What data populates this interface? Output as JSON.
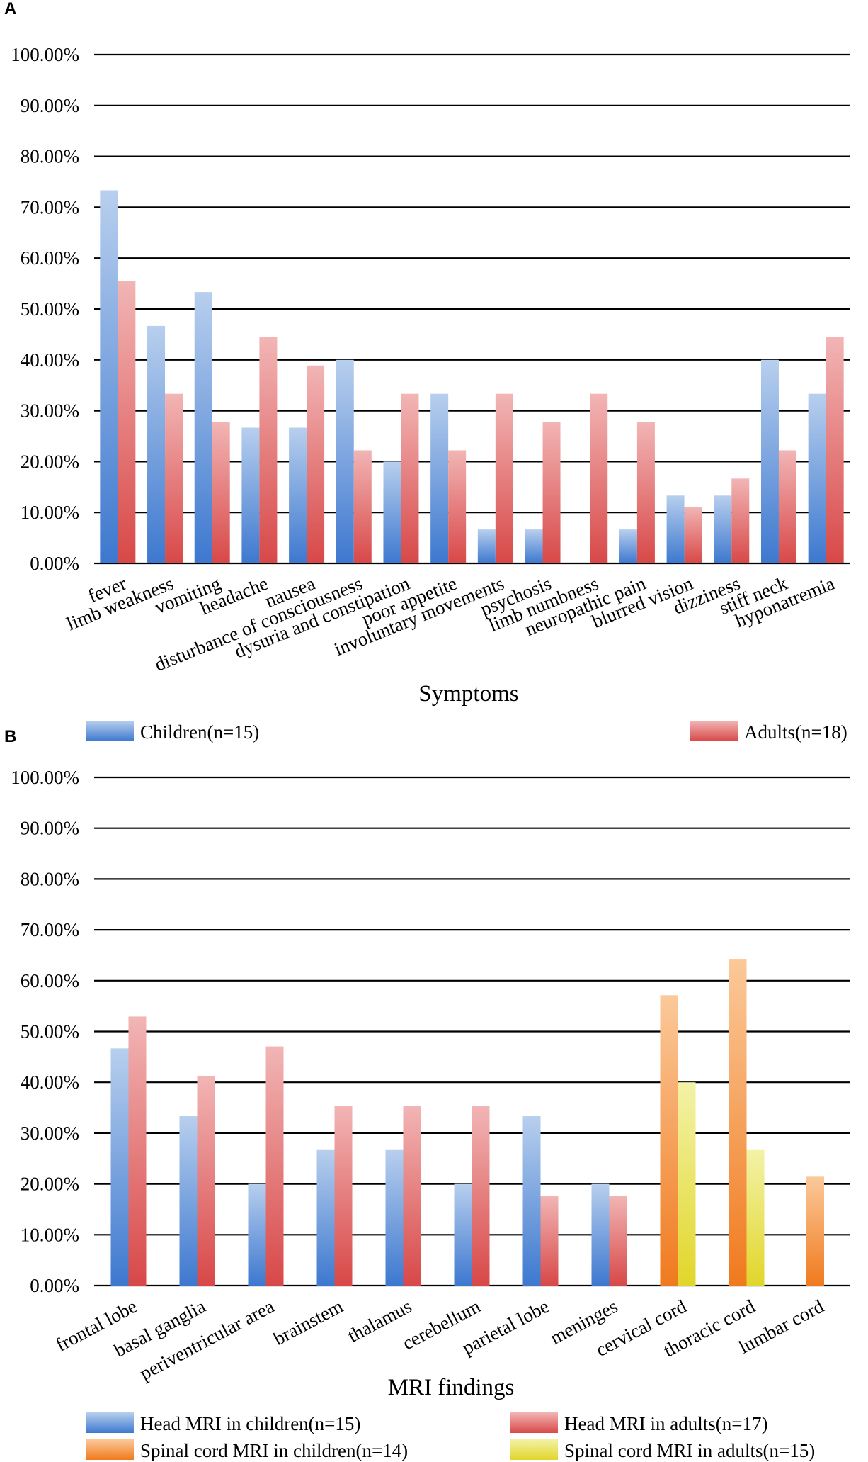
{
  "colors": {
    "blue_top": "#b8cfee",
    "blue_bottom": "#3d78cf",
    "red_top": "#f2b5b5",
    "red_bottom": "#d84848",
    "orange_top": "#fbc99a",
    "orange_bottom": "#f07a1e",
    "yellow_top": "#f3f2a8",
    "yellow_bottom": "#e1d62a"
  },
  "chart_data": [
    {
      "type": "bar",
      "panel": "A",
      "xlabel": "Symptoms",
      "ylabel": "",
      "ylim": [
        0,
        100
      ],
      "yticks": [
        "0.00%",
        "10.00%",
        "20.00%",
        "30.00%",
        "40.00%",
        "50.00%",
        "60.00%",
        "70.00%",
        "80.00%",
        "90.00%",
        "100.00%"
      ],
      "categories": [
        "fever",
        "limb weakness",
        "vomiting",
        "headache",
        "nausea",
        "disturbance of consciousness",
        "dysuria and constipation",
        "poor appetite",
        "involuntary movements",
        "psychosis",
        "limb numbness",
        "neuropathic pain",
        "blurred vision",
        "dizziness",
        "stiff neck",
        "hyponatremia"
      ],
      "series": [
        {
          "name": "Children(n=15)",
          "color": "blue",
          "values": [
            73.33,
            46.67,
            53.33,
            26.67,
            26.67,
            40.0,
            20.0,
            33.33,
            6.67,
            6.67,
            0,
            6.67,
            13.33,
            13.33,
            40.0,
            33.33
          ]
        },
        {
          "name": "Adults(n=18)",
          "color": "red",
          "values": [
            55.56,
            33.33,
            27.78,
            44.44,
            38.89,
            22.22,
            33.33,
            22.22,
            33.33,
            27.78,
            33.33,
            27.78,
            11.11,
            16.67,
            22.22,
            44.44
          ]
        }
      ],
      "legend": "bottom"
    },
    {
      "type": "bar",
      "panel": "B",
      "xlabel": "MRI findings",
      "ylabel": "",
      "ylim": [
        0,
        100
      ],
      "yticks": [
        "0.00%",
        "10.00%",
        "20.00%",
        "30.00%",
        "40.00%",
        "50.00%",
        "60.00%",
        "70.00%",
        "80.00%",
        "90.00%",
        "100.00%"
      ],
      "categories": [
        "frontal lobe",
        "basal ganglia",
        "periventricular area",
        "brainstem",
        "thalamus",
        "cerebellum",
        "parietal lobe",
        "meninges",
        "cervical cord",
        "thoracic cord",
        "lumbar cord"
      ],
      "series": [
        {
          "name": "Head MRI in children(n=15)",
          "color": "blue",
          "values": [
            46.67,
            33.33,
            20.0,
            26.67,
            26.67,
            20.0,
            33.33,
            20.0,
            null,
            null,
            null
          ]
        },
        {
          "name": "Head MRI in adults(n=17)",
          "color": "red",
          "values": [
            52.94,
            41.18,
            47.06,
            35.29,
            35.29,
            35.29,
            17.65,
            17.65,
            null,
            null,
            null
          ]
        },
        {
          "name": "Spinal cord MRI in children(n=14)",
          "color": "orange",
          "values": [
            null,
            null,
            null,
            null,
            null,
            null,
            null,
            null,
            57.14,
            64.29,
            21.43
          ]
        },
        {
          "name": "Spinal cord MRI in adults(n=15)",
          "color": "yellow",
          "values": [
            null,
            null,
            null,
            null,
            null,
            null,
            null,
            null,
            40.0,
            26.67,
            null
          ]
        }
      ],
      "legend": "bottom"
    }
  ]
}
